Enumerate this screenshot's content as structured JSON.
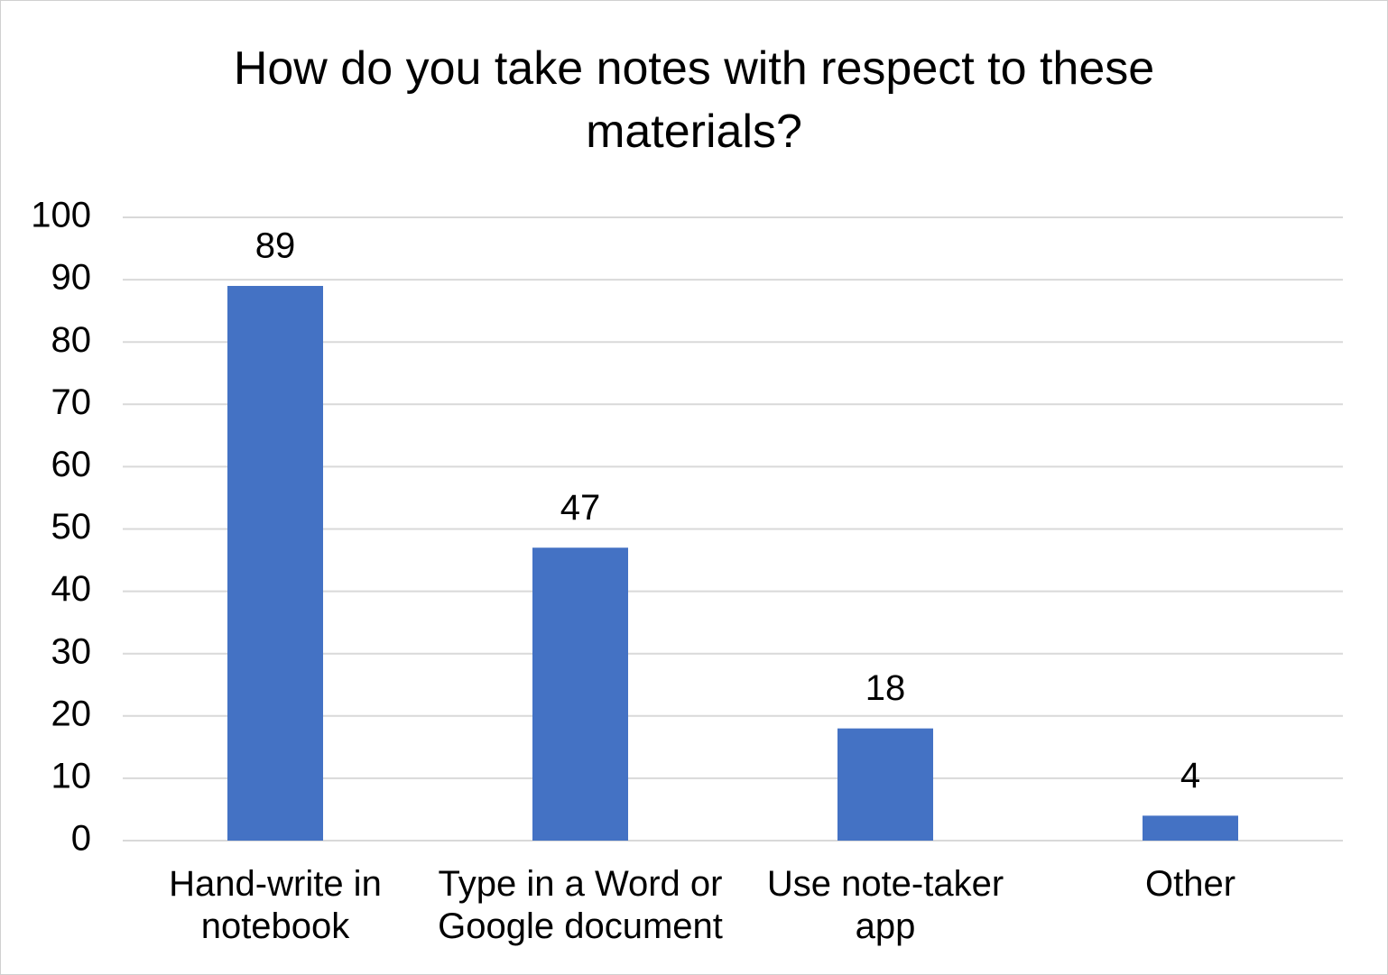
{
  "chart_data": {
    "type": "bar",
    "title": "How do you take notes with respect to these materials?",
    "categories": [
      "Hand-write in notebook",
      "Type in a Word or Google document",
      "Use note-taker app",
      "Other"
    ],
    "values": [
      89,
      47,
      18,
      4
    ],
    "color": "#4472c4",
    "ylim": [
      0,
      100
    ],
    "yticks": [
      0,
      10,
      20,
      30,
      40,
      50,
      60,
      70,
      80,
      90,
      100
    ],
    "grid": true
  }
}
